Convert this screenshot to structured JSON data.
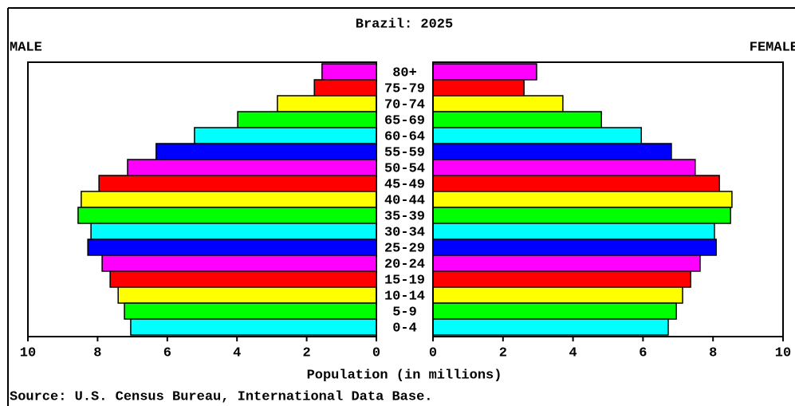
{
  "chart_data": {
    "type": "pyramid",
    "title": "Brazil: 2025",
    "categories": [
      "80+",
      "75-79",
      "70-74",
      "65-69",
      "60-64",
      "55-59",
      "50-54",
      "45-49",
      "40-44",
      "35-39",
      "30-34",
      "25-29",
      "20-24",
      "15-19",
      "10-14",
      "5-9",
      "0-4"
    ],
    "colors": [
      "#ff00ff",
      "#ff0000",
      "#ffff00",
      "#00ff00",
      "#00ffff",
      "#0000ff",
      "#ff00ff",
      "#ff0000",
      "#ffff00",
      "#00ff00",
      "#00ffff",
      "#0000ff",
      "#ff00ff",
      "#ff0000",
      "#ffff00",
      "#00ff00",
      "#00ffff"
    ],
    "series": [
      {
        "name": "MALE",
        "values": [
          1.56,
          1.78,
          2.84,
          3.98,
          5.22,
          6.32,
          7.14,
          7.96,
          8.47,
          8.56,
          8.19,
          8.28,
          7.87,
          7.64,
          7.41,
          7.23,
          7.05
        ]
      },
      {
        "name": "FEMALE",
        "values": [
          2.96,
          2.6,
          3.71,
          4.81,
          5.95,
          6.81,
          7.49,
          8.18,
          8.54,
          8.5,
          8.04,
          8.09,
          7.63,
          7.36,
          7.13,
          6.95,
          6.72
        ]
      }
    ],
    "xlim": [
      0,
      10
    ],
    "xticks": [
      0,
      2,
      4,
      6,
      8,
      10
    ],
    "xlabel": "Population (in millions)",
    "source": "Source: U.S. Census Bureau, International Data Base."
  }
}
